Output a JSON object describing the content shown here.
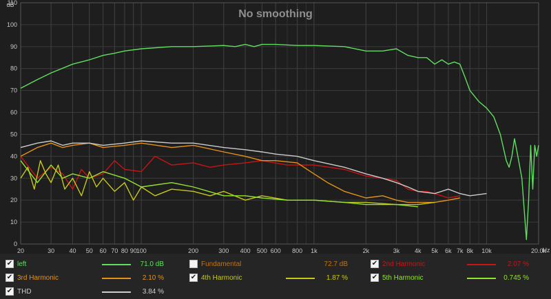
{
  "chart_data": {
    "type": "line",
    "title": "No smoothing",
    "y_unit": "dB",
    "x_unit": "Hz",
    "x_scale": "log",
    "xlim": [
      20,
      20000
    ],
    "ylim": [
      0,
      110
    ],
    "grid": true,
    "x_ticks": [
      {
        "v": 20,
        "label": "20"
      },
      {
        "v": 30,
        "label": "30"
      },
      {
        "v": 40,
        "label": "40"
      },
      {
        "v": 50,
        "label": "50"
      },
      {
        "v": 60,
        "label": "60"
      },
      {
        "v": 70,
        "label": "70"
      },
      {
        "v": 80,
        "label": "80"
      },
      {
        "v": 90,
        "label": "90"
      },
      {
        "v": 100,
        "label": "100"
      },
      {
        "v": 200,
        "label": "200"
      },
      {
        "v": 300,
        "label": "300"
      },
      {
        "v": 400,
        "label": "400"
      },
      {
        "v": 500,
        "label": "500"
      },
      {
        "v": 600,
        "label": "600"
      },
      {
        "v": 800,
        "label": "800"
      },
      {
        "v": 1000,
        "label": "1k"
      },
      {
        "v": 2000,
        "label": "2k"
      },
      {
        "v": 3000,
        "label": "3k"
      },
      {
        "v": 4000,
        "label": "4k"
      },
      {
        "v": 5000,
        "label": "5k"
      },
      {
        "v": 6000,
        "label": "6k"
      },
      {
        "v": 7000,
        "label": "7k"
      },
      {
        "v": 8000,
        "label": "8k"
      },
      {
        "v": 10000,
        "label": "10k"
      },
      {
        "v": 20000,
        "label": "20.0k"
      }
    ],
    "y_ticks": [
      0,
      10,
      20,
      30,
      40,
      50,
      60,
      70,
      80,
      90,
      100,
      110
    ],
    "series": [
      {
        "name": "left",
        "color": "#5fe05f",
        "x": [
          20,
          25,
          30,
          40,
          50,
          60,
          70,
          80,
          100,
          150,
          200,
          300,
          350,
          400,
          450,
          500,
          600,
          800,
          1000,
          1500,
          2000,
          2500,
          3000,
          3500,
          4000,
          4500,
          5000,
          5500,
          6000,
          6500,
          7000,
          7500,
          8000,
          9000,
          10000,
          11000,
          12000,
          13000,
          13500,
          14000,
          14500,
          15000,
          16000,
          17000,
          17500,
          18000,
          18500,
          19000,
          19500,
          20000
        ],
        "y": [
          71,
          75,
          78,
          82,
          84,
          86,
          87,
          88,
          89,
          90,
          90,
          90.5,
          90,
          91,
          90,
          91,
          91,
          90.5,
          90.5,
          90,
          88,
          88,
          89,
          86,
          85,
          85,
          82,
          84,
          82,
          83,
          82,
          76,
          70,
          65,
          62,
          58,
          50,
          38,
          35,
          40,
          48,
          42,
          30,
          2,
          20,
          45,
          25,
          45,
          40,
          45
        ]
      },
      {
        "name": "2nd Harmonic",
        "color": "#c81414",
        "x": [
          20,
          25,
          30,
          35,
          40,
          45,
          50,
          60,
          70,
          80,
          100,
          120,
          150,
          200,
          250,
          300,
          400,
          500,
          700,
          1000,
          1500,
          2000,
          2500,
          3000,
          3500,
          4000,
          4500,
          5000,
          6000,
          7000
        ],
        "y": [
          40,
          30,
          35,
          32,
          25,
          34,
          30,
          32,
          38,
          34,
          33,
          40,
          36,
          37,
          35,
          36,
          37,
          38,
          36,
          36,
          34,
          31,
          30,
          29,
          25,
          24,
          24,
          23,
          21,
          22
        ]
      },
      {
        "name": "3rd Harmonic",
        "color": "#e79216",
        "x": [
          20,
          25,
          30,
          35,
          40,
          50,
          60,
          80,
          100,
          150,
          200,
          300,
          400,
          500,
          600,
          800,
          1000,
          1200,
          1500,
          2000,
          2500,
          3000,
          3500,
          4000,
          5000,
          6000,
          7000
        ],
        "y": [
          40,
          44,
          46,
          44,
          45,
          46,
          44,
          45,
          46,
          44,
          45,
          42,
          40,
          38,
          38,
          37,
          32,
          28,
          24,
          21,
          22,
          20,
          19,
          19,
          19,
          20,
          21
        ]
      },
      {
        "name": "4th Harmonic",
        "color": "#c8c819",
        "x": [
          20,
          22,
          24,
          26,
          28,
          30,
          33,
          36,
          40,
          45,
          50,
          55,
          60,
          70,
          80,
          90,
          100,
          120,
          150,
          200,
          250,
          300,
          400,
          500,
          700,
          1000,
          1500,
          2000,
          3000,
          4000,
          5000
        ],
        "y": [
          30,
          35,
          25,
          38,
          32,
          28,
          36,
          25,
          30,
          22,
          33,
          26,
          30,
          24,
          28,
          20,
          26,
          22,
          25,
          24,
          22,
          24,
          20,
          22,
          20,
          20,
          19,
          19,
          18,
          18,
          19
        ]
      },
      {
        "name": "5th Harmonic",
        "color": "#93e52d",
        "x": [
          20,
          25,
          30,
          35,
          40,
          50,
          60,
          80,
          100,
          150,
          200,
          300,
          400,
          500,
          700,
          1000,
          1500,
          2000,
          3000,
          4000
        ],
        "y": [
          38,
          28,
          36,
          30,
          32,
          30,
          33,
          30,
          26,
          28,
          26,
          22,
          22,
          21,
          20,
          20,
          19,
          18,
          18,
          17
        ]
      },
      {
        "name": "THD",
        "color": "#cdcdcd",
        "x": [
          20,
          25,
          30,
          35,
          40,
          50,
          60,
          80,
          100,
          150,
          200,
          300,
          400,
          500,
          600,
          800,
          1000,
          1500,
          2000,
          2500,
          3000,
          3500,
          4000,
          5000,
          6000,
          7000,
          8000,
          10000
        ],
        "y": [
          44,
          46,
          47,
          45,
          46,
          46,
          45,
          46,
          47,
          46,
          46,
          44,
          43,
          42,
          41,
          40,
          38,
          35,
          32,
          30,
          28,
          26,
          24,
          23,
          25,
          23,
          22,
          23
        ]
      }
    ]
  },
  "legend": {
    "rows": [
      [
        {
          "checked": true,
          "name": "left",
          "color": "#5fe05f",
          "value": "71.0 dB",
          "name_color": "#5fe05f",
          "value_color": "#5fe05f"
        },
        {
          "checked": false,
          "name": "Fundamental",
          "color": "",
          "value": "72.7 dB",
          "name_color": "#c8710a",
          "value_color": "#c8710a"
        },
        {
          "checked": true,
          "name": "2nd Harmonic",
          "color": "#c81414",
          "value": "2.07 %",
          "name_color": "#c81414",
          "value_color": "#c81414"
        }
      ],
      [
        {
          "checked": true,
          "name": "3rd Harmonic",
          "color": "#e79216",
          "value": "2.10 %",
          "name_color": "#e79216",
          "value_color": "#e79216"
        },
        {
          "checked": true,
          "name": "4th Harmonic",
          "color": "#c8c819",
          "value": "1.87 %",
          "name_color": "#c8c819",
          "value_color": "#c8c819"
        },
        {
          "checked": true,
          "name": "5th Harmonic",
          "color": "#93e52d",
          "value": "0.745 %",
          "name_color": "#93e52d",
          "value_color": "#93e52d"
        }
      ],
      [
        {
          "checked": true,
          "name": "THD",
          "color": "#cdcdcd",
          "value": "3.84 %",
          "name_color": "#cdcdcd",
          "value_color": "#cdcdcd"
        }
      ]
    ]
  }
}
